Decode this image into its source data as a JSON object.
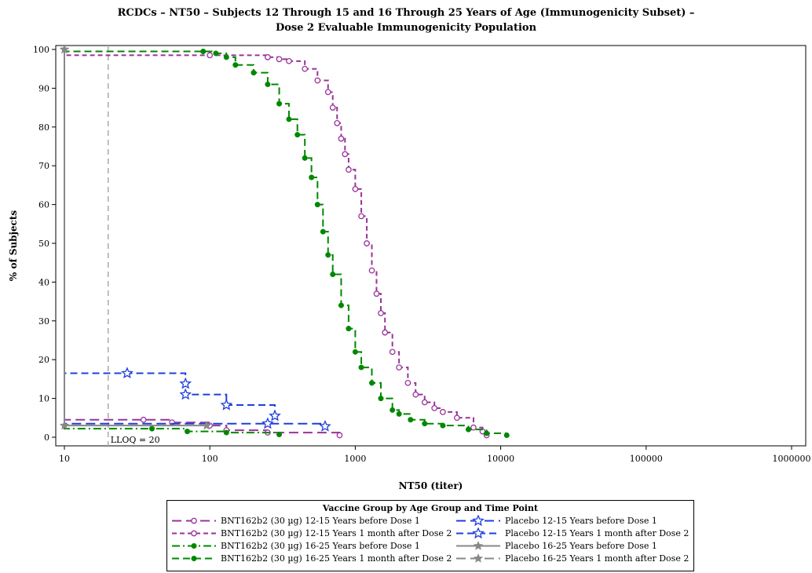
{
  "chart_data": {
    "type": "line",
    "title_line1": "RCDCs – NT50 – Subjects 12 Through 15 and 16 Through 25 Years of Age (Immunogenicity Subset) –",
    "title_line2": "Dose 2 Evaluable Immunogenicity Population",
    "xlabel": "NT50 (titer)",
    "ylabel": "% of Subjects",
    "xscale": "log",
    "xlim": [
      10,
      1000000
    ],
    "ylim": [
      0,
      100
    ],
    "x_ticks": [
      10,
      100,
      1000,
      10000,
      100000,
      1000000
    ],
    "x_tick_labels": [
      "10",
      "100",
      "1000",
      "10000",
      "100000",
      "1000000"
    ],
    "y_ticks": [
      0,
      10,
      20,
      30,
      40,
      50,
      60,
      70,
      80,
      90,
      100
    ],
    "y_tick_labels": [
      "0",
      "10",
      "20",
      "30",
      "40",
      "50",
      "60",
      "70",
      "80",
      "90",
      "100"
    ],
    "reference_line": {
      "x": 20,
      "label": "LLOQ = 20"
    },
    "legend_title": "Vaccine Group by Age Group and Time Point",
    "grid": false,
    "series": [
      {
        "name": "BNT162b2 (30 µg) 12-15 Years before Dose 1",
        "color": "#993399",
        "dash": "long",
        "marker": "circle-open",
        "x": [
          10,
          35,
          55,
          100,
          130,
          250,
          780
        ],
        "y": [
          4.5,
          4.5,
          3.8,
          3.0,
          1.8,
          1.2,
          0.5
        ]
      },
      {
        "name": "BNT162b2 (30 µg) 12-15 Years 1 month after Dose 2",
        "color": "#993399",
        "dash": "short",
        "marker": "circle-open",
        "x": [
          10,
          100,
          250,
          300,
          350,
          450,
          550,
          650,
          700,
          750,
          800,
          850,
          900,
          1000,
          1100,
          1200,
          1300,
          1400,
          1500,
          1600,
          1800,
          2000,
          2300,
          2600,
          3000,
          3500,
          4000,
          5000,
          6500,
          7500,
          8000
        ],
        "y": [
          98.5,
          98.5,
          98,
          97.5,
          97,
          95,
          92,
          89,
          85,
          81,
          77,
          73,
          69,
          64,
          57,
          50,
          43,
          37,
          32,
          27,
          22,
          18,
          14,
          11,
          9,
          7.5,
          6.5,
          5,
          2.5,
          1.5,
          0.5
        ]
      },
      {
        "name": "BNT162b2 (30 µg) 16-25 Years before Dose 1",
        "color": "#008800",
        "dash": "dashdot",
        "marker": "circle-filled",
        "x": [
          10,
          40,
          70,
          130,
          300
        ],
        "y": [
          2.2,
          2.2,
          1.5,
          1.2,
          0.7
        ]
      },
      {
        "name": "BNT162b2 (30 µg) 16-25 Years 1 month after Dose 2",
        "color": "#008800",
        "dash": "dash",
        "marker": "circle-filled",
        "x": [
          10,
          90,
          110,
          130,
          150,
          200,
          250,
          300,
          350,
          400,
          450,
          500,
          550,
          600,
          650,
          700,
          800,
          900,
          1000,
          1100,
          1300,
          1500,
          1800,
          2000,
          2400,
          3000,
          4000,
          6000,
          8000,
          11000
        ],
        "y": [
          99.5,
          99.5,
          99,
          98,
          96,
          94,
          91,
          86,
          82,
          78,
          72,
          67,
          60,
          53,
          47,
          42,
          34,
          28,
          22,
          18,
          14,
          10,
          7,
          6,
          4.5,
          3.5,
          3,
          2,
          1,
          0.5
        ]
      },
      {
        "name": "Placebo 12-15 Years before Dose 1",
        "color": "#1f3fdc",
        "dash": "long",
        "marker": "star-open",
        "x": [
          10,
          250,
          620
        ],
        "y": [
          3.5,
          3.5,
          2.8
        ]
      },
      {
        "name": "Placebo 12-15 Years 1 month after Dose 2",
        "color": "#1f3fdc",
        "dash": "dash",
        "marker": "star-open",
        "x": [
          10,
          27,
          68,
          68,
          130,
          280
        ],
        "y": [
          16.5,
          16.5,
          13.8,
          11,
          8.3,
          5.5
        ]
      },
      {
        "name": "Placebo 16-25 Years before Dose 1",
        "color": "#888888",
        "dash": "solid",
        "marker": "star-filled",
        "x": [
          10,
          95
        ],
        "y": [
          3.0,
          3.0
        ]
      },
      {
        "name": "Placebo 16-25 Years 1 month after Dose 2",
        "color": "#888888",
        "dash": "long",
        "marker": "star-filled",
        "x": [
          10,
          10
        ],
        "y": [
          100,
          100
        ]
      }
    ]
  }
}
